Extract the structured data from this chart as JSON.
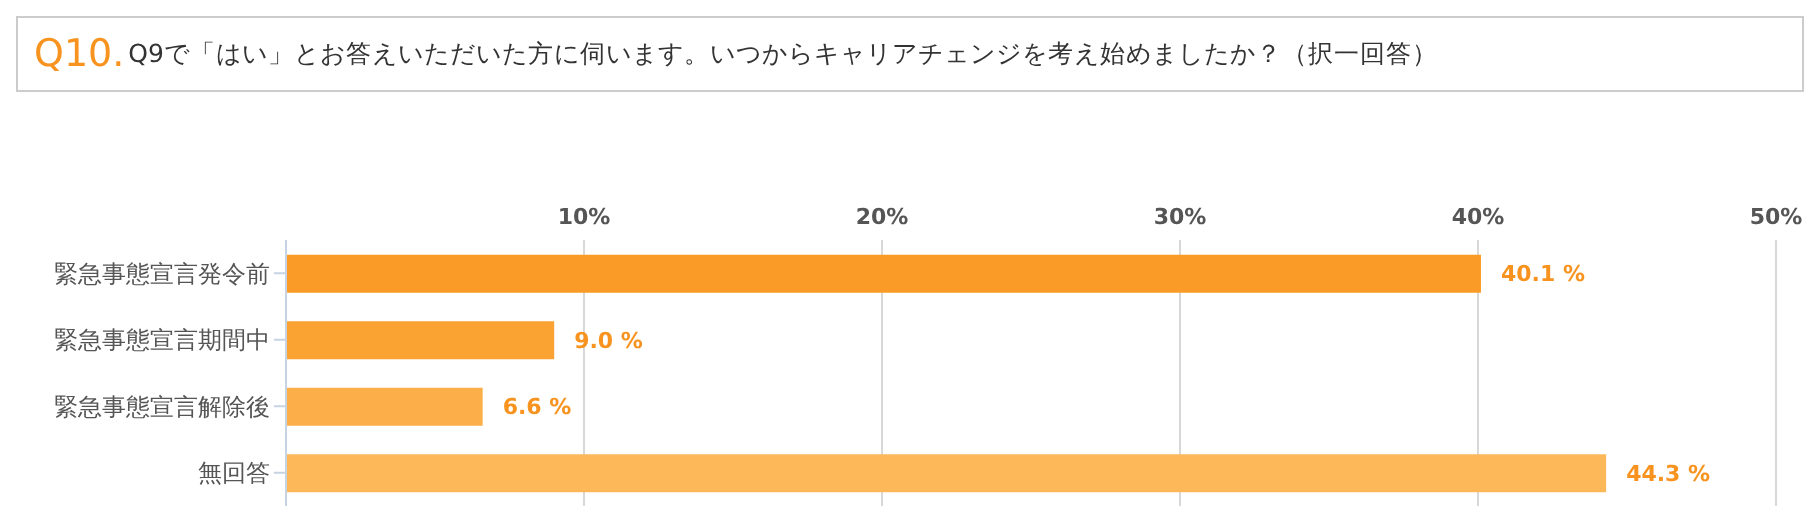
{
  "chart_data": {
    "type": "bar",
    "orientation": "horizontal",
    "title": "Q10.",
    "subtitle": "Q9で「はい」とお答えいただいた方に伺います。いつからキャリアチェンジを考え始めましたか？（択一回答）",
    "categories": [
      "緊急事態宣言発令前",
      "緊急事態宣言期間中",
      "緊急事態宣言解除後",
      "無回答"
    ],
    "values": [
      40.1,
      9.0,
      6.6,
      44.3
    ],
    "colors": [
      "#f99b26",
      "#faa232",
      "#fcae48",
      "#fdb85a"
    ],
    "value_labels": [
      "40.1 %",
      "9.0 %",
      "6.6 %",
      "44.3 %"
    ],
    "xlim": [
      0,
      50
    ],
    "xticks": [
      {
        "value": 0,
        "label": null
      },
      {
        "value": 10,
        "label": "10%"
      },
      {
        "value": 20,
        "label": "20%"
      },
      {
        "value": 30,
        "label": "30%"
      },
      {
        "value": 40,
        "label": "40%"
      },
      {
        "value": 50,
        "label": "50%"
      }
    ],
    "grid": "x"
  }
}
